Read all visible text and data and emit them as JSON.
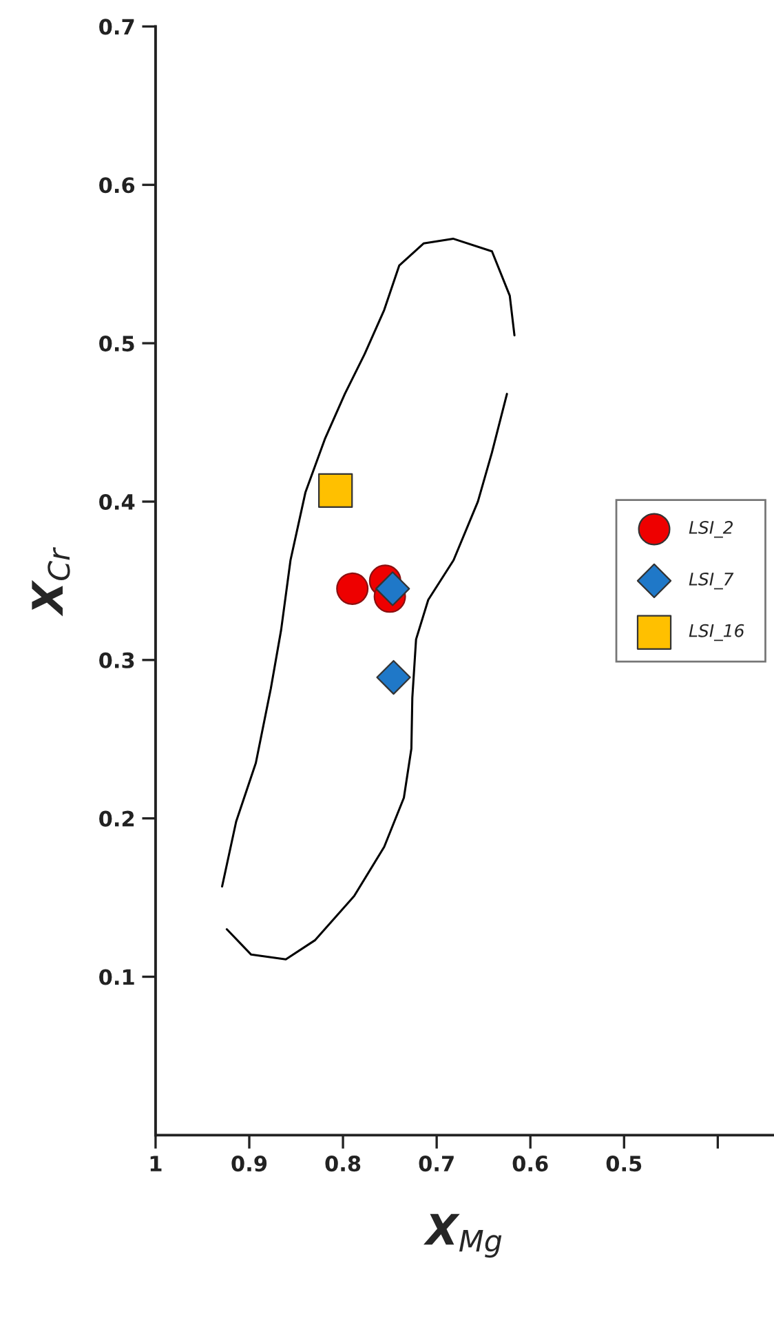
{
  "chart_data": {
    "type": "scatter",
    "xlabel": "X$_{Mg}$",
    "ylabel": "X$_{Cr}$",
    "xlim": [
      1,
      0.34
    ],
    "xticks": [
      1,
      0.9,
      0.8,
      0.7,
      0.6,
      0.5,
      {
        "value": 0.4,
        "label": null
      }
    ],
    "ylim": [
      0,
      0.7
    ],
    "yticks": [
      0.1,
      0.2,
      0.3,
      0.4,
      0.5,
      0.6,
      0.7
    ],
    "grid": false,
    "legend": "right",
    "series": [
      {
        "type": "line",
        "color": "#000000",
        "marker": "none",
        "line_style": "solid",
        "x": [
          0.929,
          0.914,
          0.893,
          0.877,
          0.866,
          0.856,
          0.84,
          0.819,
          0.798,
          0.777,
          0.756,
          0.74,
          0.714,
          0.6825,
          0.641,
          0.622,
          0.617
        ],
        "values": [
          0.157,
          0.198,
          0.235,
          0.282,
          0.319,
          0.363,
          0.406,
          0.44,
          0.468,
          0.493,
          0.521,
          0.549,
          0.563,
          0.566,
          0.558,
          0.53,
          0.505
        ]
      },
      {
        "type": "line",
        "color": "#000000",
        "marker": "none",
        "line_style": "solid",
        "x": [
          0.625,
          0.641,
          0.656,
          0.682,
          0.709,
          0.722,
          0.726,
          0.727,
          0.735,
          0.756,
          0.788,
          0.83,
          0.861,
          0.898,
          0.924
        ],
        "values": [
          0.468,
          0.431,
          0.4,
          0.363,
          0.338,
          0.313,
          0.276,
          0.244,
          0.213,
          0.182,
          0.151,
          0.123,
          0.111,
          0.114,
          0.13
        ]
      },
      {
        "name": "LSI_2",
        "color": "#ee0000",
        "marker": "circle",
        "x": [
          0.79,
          0.755,
          0.75
        ],
        "values": [
          0.345,
          0.35,
          0.34
        ]
      },
      {
        "name": "LSI_7",
        "color": "#1f78c8",
        "marker": "diamond",
        "x": [
          0.747,
          0.746
        ],
        "values": [
          0.345,
          0.289
        ]
      },
      {
        "name": "LSI_16",
        "color": "#ffc000",
        "marker": "square",
        "x": [
          0.808
        ],
        "values": [
          0.407
        ]
      }
    ]
  }
}
